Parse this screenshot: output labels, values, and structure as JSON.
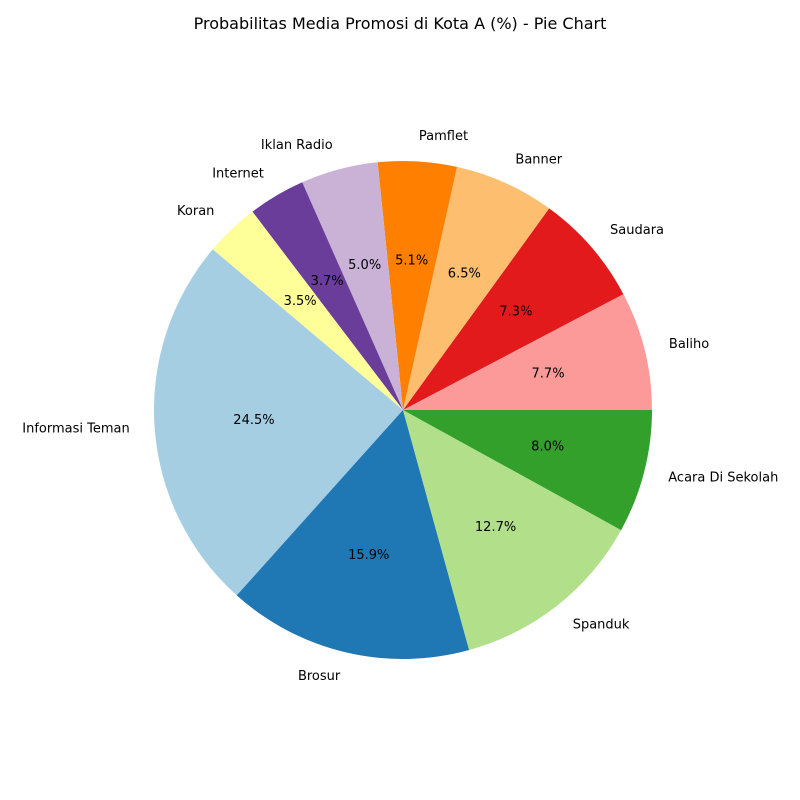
{
  "chart_data": {
    "type": "pie",
    "title": "Probabilitas Media Promosi di Kota A (%) - Pie Chart",
    "start_angle_deg": 0,
    "direction": "counterclockwise",
    "slices": [
      {
        "label": "Baliho",
        "value": 7.7,
        "pct_text": "7.7%",
        "color": "#fb9a99"
      },
      {
        "label": "Saudara",
        "value": 7.3,
        "pct_text": "7.3%",
        "color": "#e31a1c"
      },
      {
        "label": "Banner",
        "value": 6.5,
        "pct_text": "6.5%",
        "color": "#fdbf6f"
      },
      {
        "label": "Pamflet",
        "value": 5.1,
        "pct_text": "5.1%",
        "color": "#ff7f00"
      },
      {
        "label": "Iklan Radio",
        "value": 5.0,
        "pct_text": "5.0%",
        "color": "#cab2d6"
      },
      {
        "label": "Internet",
        "value": 3.7,
        "pct_text": "3.7%",
        "color": "#6a3d9a"
      },
      {
        "label": "Koran",
        "value": 3.5,
        "pct_text": "3.5%",
        "color": "#ffff99"
      },
      {
        "label": "Informasi Teman",
        "value": 24.5,
        "pct_text": "24.5%",
        "color": "#a6cee3"
      },
      {
        "label": "Brosur",
        "value": 15.9,
        "pct_text": "15.9%",
        "color": "#1f78b4"
      },
      {
        "label": "Spanduk",
        "value": 12.7,
        "pct_text": "12.7%",
        "color": "#b2df8a"
      },
      {
        "label": "Acara Di Sekolah",
        "value": 8.0,
        "pct_text": "8.0%",
        "color": "#33a02c"
      }
    ]
  }
}
